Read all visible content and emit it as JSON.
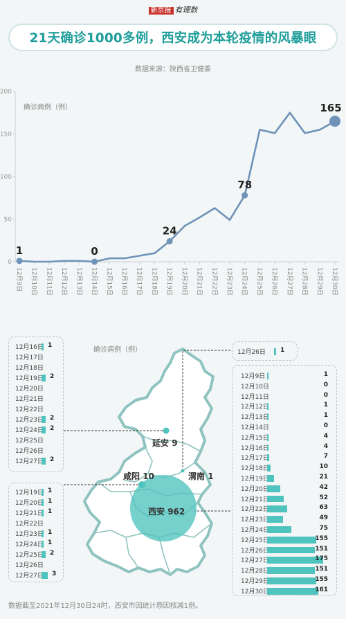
{
  "header": {
    "logo_part1": "新京报",
    "logo_part2": "有理数",
    "title": "21天确诊1000多例，西安成为本轮疫情的风暴眼",
    "source": "数据来源：陕西省卫健委"
  },
  "chart_data": {
    "type": "line",
    "title": "21天确诊1000多例，西安成为本轮疫情的风暴眼",
    "ylabel": "确诊病例（例）",
    "ylim": [
      0,
      200
    ],
    "yticks": [
      0,
      50,
      100,
      150,
      200
    ],
    "categories": [
      "12月9日",
      "12月10日",
      "12月11日",
      "12月12日",
      "12月13日",
      "12月14日",
      "12月15日",
      "12月16日",
      "12月17日",
      "12月18日",
      "12月19日",
      "12月20日",
      "12月21日",
      "12月22日",
      "12月23日",
      "12月24日",
      "12月25日",
      "12月26日",
      "12月27日",
      "12月28日",
      "12月29日",
      "12月30日"
    ],
    "values": [
      1,
      0,
      0,
      1,
      1,
      0,
      4,
      4,
      7,
      10,
      24,
      42,
      52,
      63,
      49,
      78,
      155,
      151,
      175,
      151,
      155,
      165
    ],
    "highlighted_points": [
      {
        "index": 0,
        "label": "1"
      },
      {
        "index": 5,
        "label": "0"
      },
      {
        "index": 10,
        "label": "24"
      },
      {
        "index": 15,
        "label": "78"
      },
      {
        "index": 21,
        "label": "165"
      }
    ],
    "line_color": "#6f93b8",
    "grid": false
  },
  "map": {
    "legend": "确诊病例（例）",
    "cities": {
      "yanan": {
        "name": "延安",
        "value": "9"
      },
      "xianyang": {
        "name": "咸阳",
        "value": "10"
      },
      "weinan": {
        "name": "渭南",
        "value": "1"
      },
      "xian": {
        "name": "西安",
        "value": "962"
      }
    },
    "map_color": "#7fb8b4",
    "bubble_color": "#4fc3bd"
  },
  "yanan_box": {
    "rows": [
      {
        "date": "12月16日",
        "value": "1",
        "bar": 1
      },
      {
        "date": "12月17日",
        "value": "",
        "bar": 0
      },
      {
        "date": "12月18日",
        "value": "",
        "bar": 0
      },
      {
        "date": "12月19日",
        "value": "2",
        "bar": 2
      },
      {
        "date": "12月20日",
        "value": "",
        "bar": 0
      },
      {
        "date": "12月21日",
        "value": "",
        "bar": 0
      },
      {
        "date": "12月22日",
        "value": "",
        "bar": 0
      },
      {
        "date": "12月23日",
        "value": "2",
        "bar": 2
      },
      {
        "date": "12月24日",
        "value": "2",
        "bar": 2
      },
      {
        "date": "12月25日",
        "value": "",
        "bar": 0
      },
      {
        "date": "12月26日",
        "value": "",
        "bar": 0
      },
      {
        "date": "12月27日",
        "value": "2",
        "bar": 2
      }
    ]
  },
  "xianyang_box": {
    "rows": [
      {
        "date": "12月19日",
        "value": "1",
        "bar": 1
      },
      {
        "date": "12月20日",
        "value": "1",
        "bar": 1
      },
      {
        "date": "12月21日",
        "value": "1",
        "bar": 1
      },
      {
        "date": "12月22日",
        "value": "",
        "bar": 0
      },
      {
        "date": "12月23日",
        "value": "1",
        "bar": 1
      },
      {
        "date": "12月24日",
        "value": "1",
        "bar": 1
      },
      {
        "date": "12月25日",
        "value": "2",
        "bar": 2
      },
      {
        "date": "12月26日",
        "value": "",
        "bar": 0
      },
      {
        "date": "12月27日",
        "value": "3",
        "bar": 3
      }
    ]
  },
  "weinan_box": {
    "rows": [
      {
        "date": "12月26日",
        "value": "1",
        "bar": 1
      }
    ]
  },
  "xian_box": {
    "rows": [
      {
        "date": "12月9日",
        "value": "1",
        "bar": 1
      },
      {
        "date": "12月10日",
        "value": "0",
        "bar": 0
      },
      {
        "date": "12月11日",
        "value": "0",
        "bar": 0
      },
      {
        "date": "12月12日",
        "value": "1",
        "bar": 1
      },
      {
        "date": "12月13日",
        "value": "1",
        "bar": 1
      },
      {
        "date": "12月14日",
        "value": "0",
        "bar": 0
      },
      {
        "date": "12月15日",
        "value": "4",
        "bar": 4
      },
      {
        "date": "12月16日",
        "value": "4",
        "bar": 4
      },
      {
        "date": "12月17日",
        "value": "7",
        "bar": 7
      },
      {
        "date": "12月18日",
        "value": "10",
        "bar": 10
      },
      {
        "date": "12月19日",
        "value": "21",
        "bar": 21
      },
      {
        "date": "12月20日",
        "value": "42",
        "bar": 42
      },
      {
        "date": "12月21日",
        "value": "52",
        "bar": 52
      },
      {
        "date": "12月22日",
        "value": "63",
        "bar": 63
      },
      {
        "date": "12月23日",
        "value": "49",
        "bar": 49
      },
      {
        "date": "12月24日",
        "value": "75",
        "bar": 75
      },
      {
        "date": "12月25日",
        "value": "155",
        "bar": 155
      },
      {
        "date": "12月26日",
        "value": "151",
        "bar": 151
      },
      {
        "date": "12月27日",
        "value": "175",
        "bar": 175
      },
      {
        "date": "12月28日",
        "value": "151",
        "bar": 151
      },
      {
        "date": "12月29日",
        "value": "155",
        "bar": 155
      },
      {
        "date": "12月30日",
        "value": "161",
        "bar": 161
      }
    ]
  },
  "footnote": "数据截至2021年12月30日24时，西安市因统计原因核减1例。"
}
